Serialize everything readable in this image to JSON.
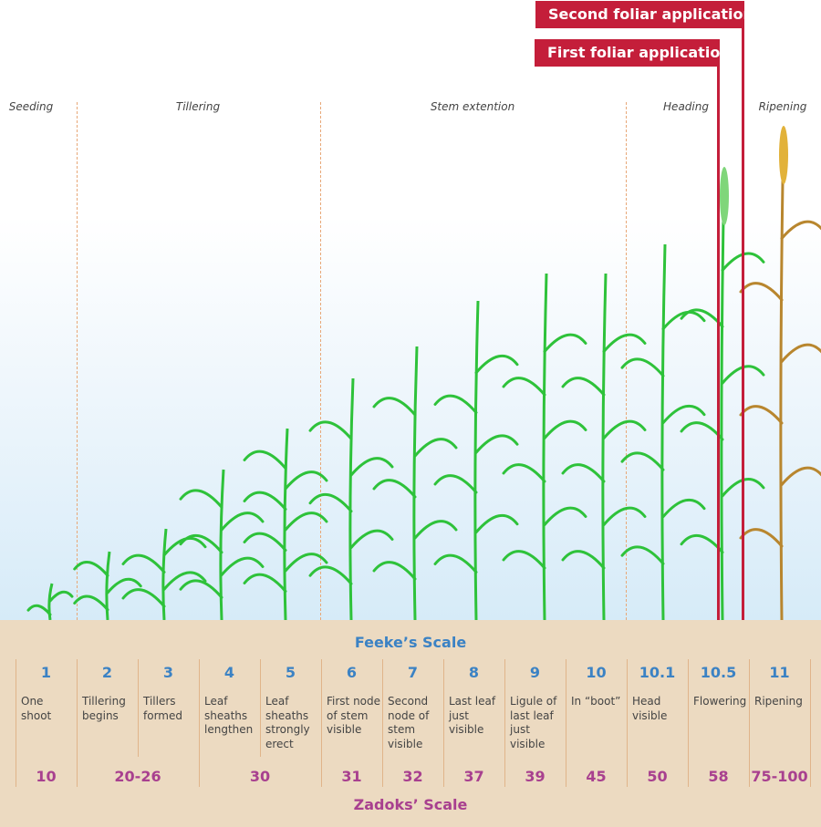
{
  "phases": [
    {
      "label": "Seeding"
    },
    {
      "label": "Tillering"
    },
    {
      "label": "Stem extention"
    },
    {
      "label": "Heading"
    },
    {
      "label": "Ripening"
    }
  ],
  "applications": {
    "second": "Second foliar application",
    "first": "First foliar application"
  },
  "feekes_title": "Feeke’s Scale",
  "zadoks_title": "Zadoks’ Scale",
  "stages": [
    {
      "feekes": "1",
      "desc": "One shoot"
    },
    {
      "feekes": "2",
      "desc": "Tillering begins"
    },
    {
      "feekes": "3",
      "desc": "Tillers formed"
    },
    {
      "feekes": "4",
      "desc": "Leaf sheaths lengthen"
    },
    {
      "feekes": "5",
      "desc": "Leaf sheaths strongly erect"
    },
    {
      "feekes": "6",
      "desc": "First node of stem visible"
    },
    {
      "feekes": "7",
      "desc": "Second node of stem visible"
    },
    {
      "feekes": "8",
      "desc": "Last leaf just visible"
    },
    {
      "feekes": "9",
      "desc": "Ligule of last leaf just visible"
    },
    {
      "feekes": "10",
      "desc": "In “boot”"
    },
    {
      "feekes": "10.1",
      "desc": "Head visible"
    },
    {
      "feekes": "10.5",
      "desc": "Flowering"
    },
    {
      "feekes": "11",
      "desc": "Ripening"
    }
  ],
  "zadoks": [
    "10",
    "20-26",
    "30",
    "31",
    "32",
    "37",
    "39",
    "45",
    "50",
    "58",
    "75-100"
  ],
  "colors": {
    "plant": "#2ec23a",
    "ripe": "#b8862e",
    "accent": "#c41e3a",
    "feekes": "#3b82c4",
    "zadoks": "#a8408f",
    "ground": "#ecdac1"
  }
}
